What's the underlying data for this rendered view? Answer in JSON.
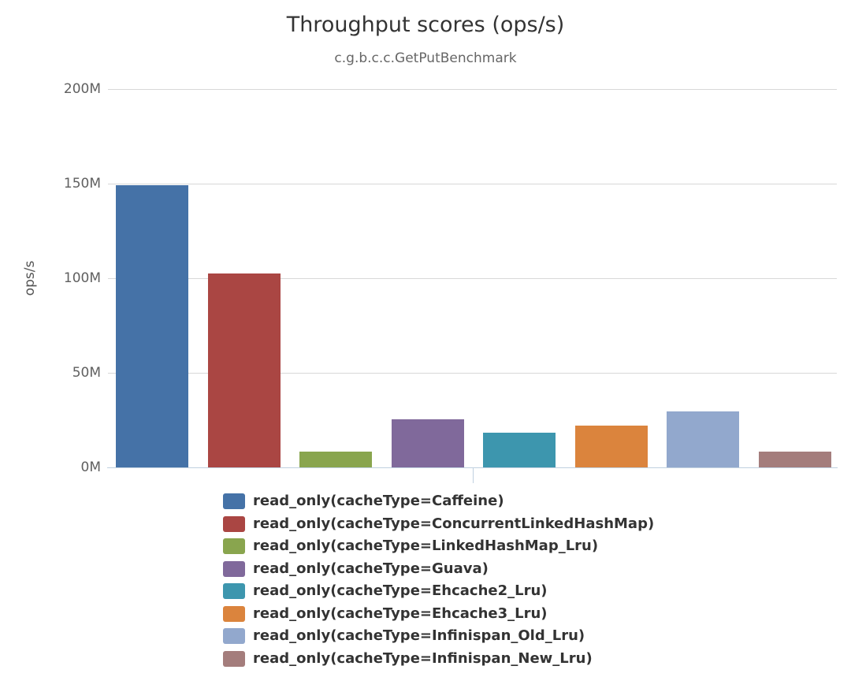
{
  "chart_data": {
    "type": "bar",
    "title": "Throughput scores (ops/s)",
    "subtitle": "c.g.b.c.c.GetPutBenchmark",
    "ylabel": "ops/s",
    "xlabel": "",
    "unit_suffix": "M",
    "ylim_m": [
      0,
      200
    ],
    "grid": true,
    "legend_position": "bottom-left",
    "yticks": [
      {
        "value_m": 0,
        "label": "0M"
      },
      {
        "value_m": 50,
        "label": "50M"
      },
      {
        "value_m": 100,
        "label": "100M"
      },
      {
        "value_m": 150,
        "label": "150M"
      },
      {
        "value_m": 200,
        "label": "200M"
      }
    ],
    "series": [
      {
        "name": "read_only(cacheType=Caffeine)",
        "value_m": 149,
        "color": "#4572A7"
      },
      {
        "name": "read_only(cacheType=ConcurrentLinkedHashMap)",
        "value_m": 102.5,
        "color": "#AA4643"
      },
      {
        "name": "read_only(cacheType=LinkedHashMap_Lru)",
        "value_m": 8.5,
        "color": "#89A54E"
      },
      {
        "name": "read_only(cacheType=Guava)",
        "value_m": 25.5,
        "color": "#80699B"
      },
      {
        "name": "read_only(cacheType=Ehcache2_Lru)",
        "value_m": 18.5,
        "color": "#3D96AE"
      },
      {
        "name": "read_only(cacheType=Ehcache3_Lru)",
        "value_m": 22,
        "color": "#DB843D"
      },
      {
        "name": "read_only(cacheType=Infinispan_Old_Lru)",
        "value_m": 29.5,
        "color": "#92A8CD"
      },
      {
        "name": "read_only(cacheType=Infinispan_New_Lru)",
        "value_m": 8.5,
        "color": "#A47D7C"
      }
    ],
    "colors": {
      "grid": "#d8d8d8",
      "axis_line": "#c0d0e0",
      "tick_mark": "#c0d0e0",
      "title_text": "#333333",
      "subtitle_text": "#666666",
      "tick_label_text": "#606060",
      "legend_text": "#333333"
    }
  }
}
